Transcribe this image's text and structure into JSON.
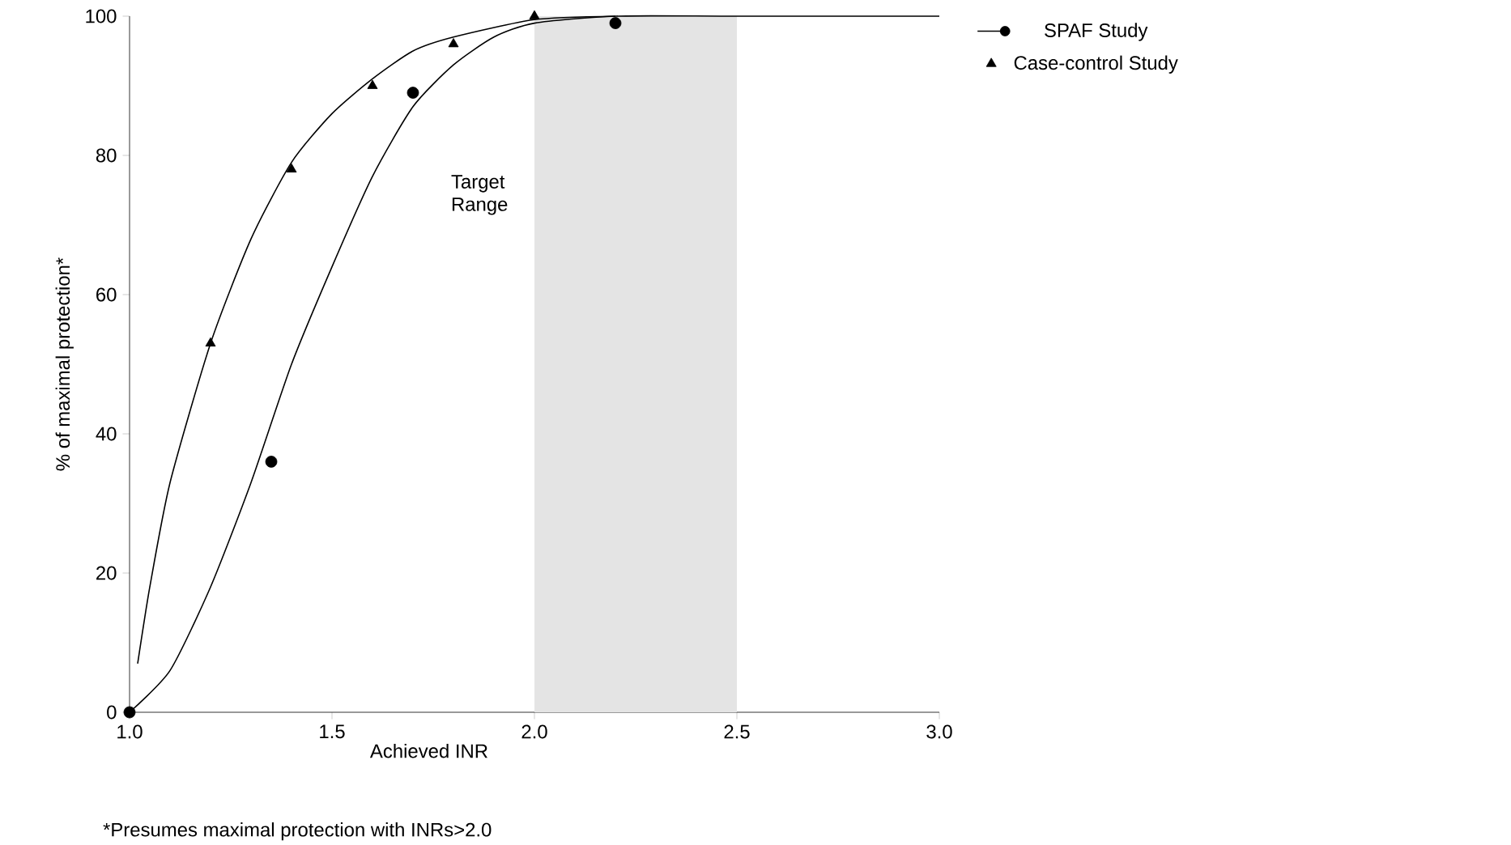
{
  "chart_data": {
    "type": "scatter",
    "xlabel": "Achieved INR",
    "ylabel": "% of maximal protection*",
    "xlim": [
      1.0,
      3.0
    ],
    "ylim": [
      0,
      100
    ],
    "xticks": [
      {
        "value": 1.0,
        "label": "1.0"
      },
      1.5,
      {
        "value": 2.0,
        "label": "2.0"
      },
      2.5,
      {
        "value": 3.0,
        "label": "3.0"
      }
    ],
    "yticks": [
      0,
      20,
      40,
      60,
      80,
      100
    ],
    "legend": "right",
    "grid": false,
    "bands": [
      {
        "axis": "x",
        "from": 2.0,
        "to": 2.5,
        "label": "Target Range",
        "color": "#e4e4e4"
      }
    ],
    "annotations": [
      "*Presumes maximal protection with INRs>2.0"
    ],
    "series": [
      {
        "name": "SPAF Study",
        "marker": "circle",
        "color": "#000000",
        "x": [
          1.0,
          1.35,
          1.7,
          2.2
        ],
        "values": [
          0,
          36,
          89,
          99
        ]
      },
      {
        "name": "Case-control Study",
        "marker": "triangle",
        "color": "#000000",
        "x": [
          1.2,
          1.4,
          1.6,
          1.8,
          2.0
        ],
        "values": [
          53,
          78,
          90,
          96,
          100
        ]
      },
      {
        "type": "line",
        "marker": "none",
        "color": "#000000",
        "x": [
          1.0,
          1.1,
          1.2,
          1.3,
          1.4,
          1.5,
          1.6,
          1.7,
          1.8,
          1.9,
          2.0,
          2.2,
          2.5,
          3.0
        ],
        "values": [
          0,
          6,
          18,
          33,
          50,
          64,
          77,
          87,
          93,
          97,
          99,
          100,
          100,
          100
        ]
      },
      {
        "type": "line",
        "marker": "none",
        "color": "#000000",
        "x": [
          1.02,
          1.05,
          1.1,
          1.2,
          1.3,
          1.4,
          1.5,
          1.6,
          1.7,
          1.8,
          2.0,
          2.2
        ],
        "values": [
          7,
          18,
          33,
          53,
          68,
          79,
          86,
          91,
          95,
          97,
          99.5,
          100
        ]
      }
    ]
  }
}
